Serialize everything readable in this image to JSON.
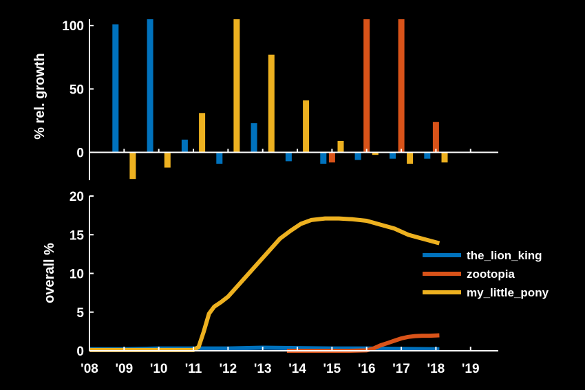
{
  "chart_data": [
    {
      "type": "bar",
      "ylabel": "% rel. growth",
      "ylim": [
        -22,
        105
      ],
      "xlim": [
        2008,
        2019.8
      ],
      "yticks": [
        "0",
        "50",
        "100"
      ],
      "xticks": [
        "'08",
        "'09",
        "'10",
        "'11",
        "'12",
        "'13",
        "'14",
        "'15",
        "'16",
        "'17",
        "'18",
        "'19"
      ],
      "grid": false,
      "colors": {
        "the_lion_king": "#0072bd",
        "zootopia": "#d95319",
        "my_little_pony": "#edb120"
      },
      "bars": [
        {
          "series": "the_lion_king",
          "x": 2008.75,
          "value": 101
        },
        {
          "series": "my_little_pony",
          "x": 2009.25,
          "value": -21
        },
        {
          "series": "the_lion_king",
          "x": 2009.75,
          "value": 105
        },
        {
          "series": "my_little_pony",
          "x": 2010.25,
          "value": -12
        },
        {
          "series": "the_lion_king",
          "x": 2010.75,
          "value": 10
        },
        {
          "series": "my_little_pony",
          "x": 2011.25,
          "value": 31
        },
        {
          "series": "the_lion_king",
          "x": 2011.75,
          "value": -9
        },
        {
          "series": "my_little_pony",
          "x": 2012.25,
          "value": 105
        },
        {
          "series": "the_lion_king",
          "x": 2012.75,
          "value": 23
        },
        {
          "series": "my_little_pony",
          "x": 2013.25,
          "value": 77
        },
        {
          "series": "the_lion_king",
          "x": 2013.75,
          "value": -7
        },
        {
          "series": "my_little_pony",
          "x": 2014.25,
          "value": 41
        },
        {
          "series": "the_lion_king",
          "x": 2014.75,
          "value": -9
        },
        {
          "series": "zootopia",
          "x": 2015.0,
          "value": -8
        },
        {
          "series": "my_little_pony",
          "x": 2015.25,
          "value": 9
        },
        {
          "series": "the_lion_king",
          "x": 2015.75,
          "value": -6
        },
        {
          "series": "zootopia",
          "x": 2016.0,
          "value": 105
        },
        {
          "series": "my_little_pony",
          "x": 2016.25,
          "value": -2
        },
        {
          "series": "the_lion_king",
          "x": 2016.75,
          "value": -5
        },
        {
          "series": "zootopia",
          "x": 2017.0,
          "value": 105
        },
        {
          "series": "my_little_pony",
          "x": 2017.25,
          "value": -9
        },
        {
          "series": "the_lion_king",
          "x": 2017.75,
          "value": -5
        },
        {
          "series": "zootopia",
          "x": 2018.0,
          "value": 24
        },
        {
          "series": "my_little_pony",
          "x": 2018.25,
          "value": -8
        }
      ]
    },
    {
      "type": "line",
      "ylabel": "overall %",
      "ylim": [
        0,
        20
      ],
      "xlim": [
        2008,
        2019.8
      ],
      "yticks": [
        "0",
        "5",
        "10",
        "15",
        "20"
      ],
      "xticks": [
        "'08",
        "'09",
        "'10",
        "'11",
        "'12",
        "'13",
        "'14",
        "'15",
        "'16",
        "'17",
        "'18",
        "'19"
      ],
      "grid": false,
      "legend": "right",
      "series": [
        {
          "name": "the_lion_king",
          "color": "#0072bd",
          "x": [
            2008,
            2009,
            2010,
            2011,
            2012,
            2013,
            2014,
            2015,
            2016,
            2017,
            2018.1
          ],
          "y": [
            0.2,
            0.2,
            0.3,
            0.3,
            0.3,
            0.4,
            0.35,
            0.3,
            0.3,
            0.25,
            0.2
          ]
        },
        {
          "name": "zootopia",
          "color": "#d95319",
          "x": [
            2013.7,
            2014.5,
            2015.5,
            2016.0,
            2016.2,
            2016.4,
            2016.6,
            2016.8,
            2017.0,
            2017.2,
            2017.4,
            2017.6,
            2017.8,
            2018.1
          ],
          "y": [
            0.0,
            0.0,
            0.0,
            0.05,
            0.3,
            0.7,
            1.0,
            1.3,
            1.6,
            1.8,
            1.9,
            1.95,
            1.95,
            2.0
          ]
        },
        {
          "name": "my_little_pony",
          "color": "#edb120",
          "x": [
            2008,
            2009,
            2010,
            2011,
            2011.15,
            2011.3,
            2011.45,
            2011.6,
            2011.8,
            2012,
            2012.3,
            2012.6,
            2012.9,
            2013.2,
            2013.5,
            2013.8,
            2014.1,
            2014.4,
            2014.8,
            2015.2,
            2015.6,
            2016,
            2016.4,
            2016.8,
            2017.2,
            2017.6,
            2018.1
          ],
          "y": [
            0.1,
            0.1,
            0.1,
            0.1,
            0.5,
            2.5,
            4.8,
            5.7,
            6.3,
            7.0,
            8.5,
            10.0,
            11.5,
            13.0,
            14.5,
            15.5,
            16.4,
            16.9,
            17.1,
            17.1,
            17.0,
            16.8,
            16.3,
            15.8,
            15.0,
            14.5,
            13.9
          ]
        }
      ]
    }
  ]
}
